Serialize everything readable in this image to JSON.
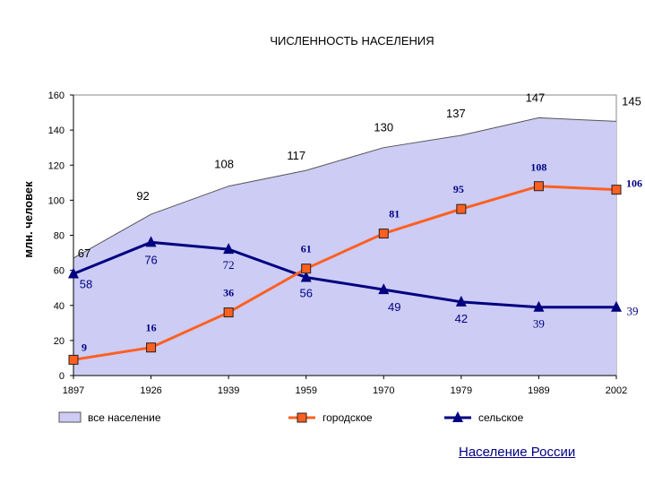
{
  "chart_data": {
    "type": "line",
    "title": "ЧИСЛЕННОСТЬ НАСЕЛЕНИЯ",
    "ylabel": "млн. человек",
    "xlabel": "",
    "categories": [
      "1897",
      "1926",
      "1939",
      "1959",
      "1970",
      "1979",
      "1989",
      "2002"
    ],
    "ylim": [
      0,
      160
    ],
    "yticks": [
      0,
      20,
      40,
      60,
      80,
      100,
      120,
      140,
      160
    ],
    "grid": false,
    "legend_position": "bottom",
    "series": [
      {
        "name": "все население",
        "kind": "area",
        "color": "#CCCCF5",
        "values": [
          67,
          92,
          108,
          117,
          130,
          137,
          147,
          145
        ],
        "labels": [
          "67",
          "92",
          "108",
          "117",
          "130",
          "137",
          "147",
          "145"
        ]
      },
      {
        "name": "городское",
        "kind": "line",
        "color": "#FF6020",
        "marker": "square",
        "label_color": "#000080",
        "values": [
          9,
          16,
          36,
          61,
          81,
          95,
          108,
          106
        ],
        "labels": [
          "9",
          "16",
          "36",
          "61",
          "81",
          "95",
          "108",
          "106"
        ]
      },
      {
        "name": "сельское",
        "kind": "line",
        "color": "#000080",
        "marker": "triangle",
        "label_color": "#000080",
        "values": [
          58,
          76,
          72,
          56,
          49,
          42,
          39,
          39
        ],
        "labels": [
          "58",
          "76",
          "72",
          "56",
          "49",
          "42",
          "39",
          "39"
        ]
      }
    ]
  },
  "footer": {
    "link_text": "Население России"
  }
}
